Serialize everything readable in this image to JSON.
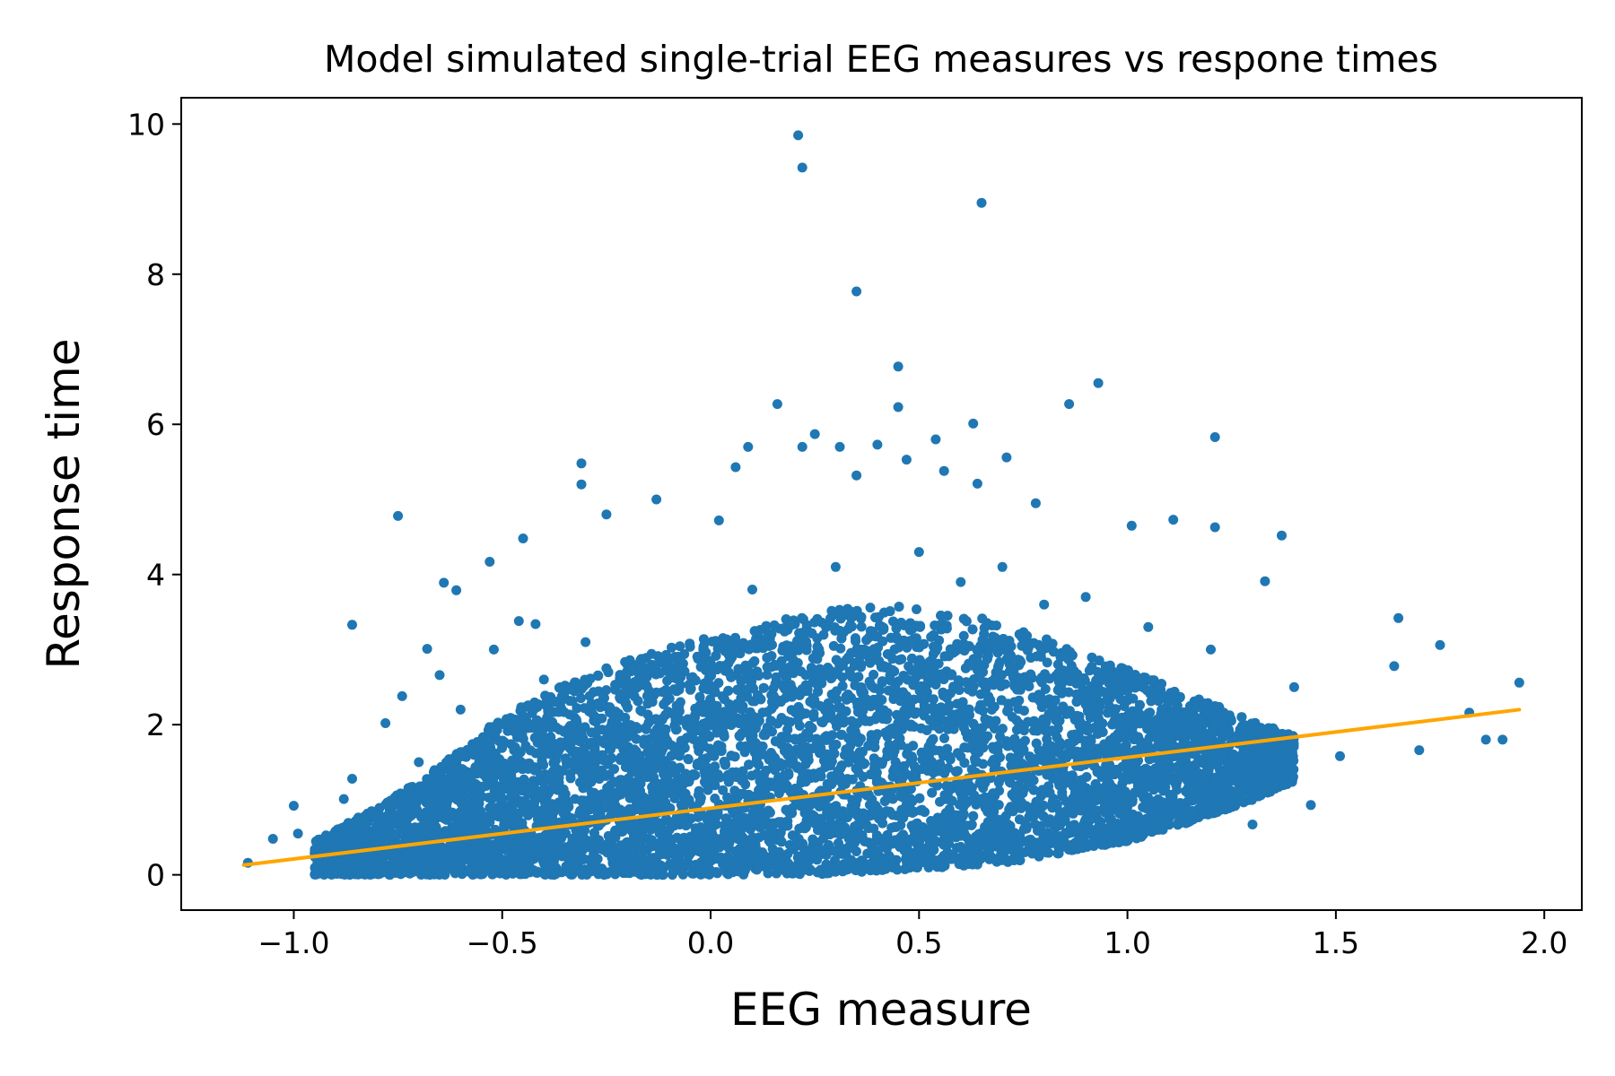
{
  "chart_data": {
    "type": "scatter",
    "title": "Model simulated single-trial EEG measures vs respone times",
    "xlabel": "EEG measure",
    "ylabel": "Response time",
    "xlim": [
      -1.27,
      2.09
    ],
    "ylim": [
      -0.47,
      10.35
    ],
    "xticks": [
      -1.0,
      -0.5,
      0.0,
      0.5,
      1.0,
      1.5,
      2.0
    ],
    "xtick_labels": [
      "−1.0",
      "−0.5",
      "0.0",
      "0.5",
      "1.0",
      "1.5",
      "2.0"
    ],
    "yticks": [
      0,
      2,
      4,
      6,
      8,
      10
    ],
    "ytick_labels": [
      "0",
      "2",
      "4",
      "6",
      "8",
      "10"
    ],
    "grid": false,
    "legend": "none",
    "colors": {
      "points": "#1f77b4",
      "fit_line": "#ffa500"
    },
    "series": [
      {
        "kind": "points",
        "points": [
          [
            0.21,
            9.85
          ],
          [
            0.22,
            9.42
          ],
          [
            0.65,
            8.95
          ],
          [
            0.35,
            7.77
          ],
          [
            0.45,
            6.77
          ],
          [
            0.93,
            6.55
          ],
          [
            0.86,
            6.27
          ],
          [
            0.16,
            6.27
          ],
          [
            0.45,
            6.23
          ],
          [
            0.63,
            6.01
          ],
          [
            0.25,
            5.87
          ],
          [
            1.21,
            5.83
          ],
          [
            0.09,
            5.7
          ],
          [
            0.22,
            5.7
          ],
          [
            0.54,
            5.8
          ],
          [
            0.31,
            5.7
          ],
          [
            0.4,
            5.73
          ],
          [
            -0.31,
            5.48
          ],
          [
            0.71,
            5.56
          ],
          [
            0.47,
            5.53
          ],
          [
            0.35,
            5.32
          ],
          [
            -0.31,
            5.2
          ],
          [
            0.06,
            5.43
          ],
          [
            0.56,
            5.38
          ],
          [
            0.64,
            5.21
          ],
          [
            -0.13,
            5.0
          ],
          [
            -0.75,
            4.78
          ],
          [
            -0.25,
            4.8
          ],
          [
            0.02,
            4.72
          ],
          [
            0.78,
            4.95
          ],
          [
            1.01,
            4.65
          ],
          [
            1.11,
            4.73
          ],
          [
            1.21,
            4.63
          ],
          [
            1.37,
            4.52
          ],
          [
            -0.45,
            4.48
          ],
          [
            -0.53,
            4.17
          ],
          [
            -0.64,
            3.89
          ],
          [
            -0.61,
            3.79
          ],
          [
            1.33,
            3.91
          ],
          [
            -0.86,
            3.33
          ],
          [
            -0.46,
            3.38
          ],
          [
            -0.42,
            3.34
          ],
          [
            -0.68,
            3.01
          ],
          [
            -0.65,
            2.66
          ],
          [
            1.65,
            3.42
          ],
          [
            1.75,
            3.06
          ],
          [
            1.94,
            2.56
          ],
          [
            1.64,
            2.78
          ],
          [
            -0.74,
            2.38
          ],
          [
            -0.78,
            2.02
          ],
          [
            -0.86,
            1.28
          ],
          [
            -0.88,
            1.01
          ],
          [
            -1.0,
            0.92
          ],
          [
            -1.05,
            0.48
          ],
          [
            -0.99,
            0.55
          ],
          [
            -1.11,
            0.16
          ],
          [
            -0.92,
            0.04
          ],
          [
            1.82,
            2.16
          ],
          [
            1.9,
            1.8
          ],
          [
            1.86,
            1.8
          ],
          [
            1.7,
            1.66
          ],
          [
            1.51,
            1.58
          ],
          [
            1.44,
            0.93
          ],
          [
            1.3,
            0.67
          ],
          [
            -0.52,
            3.0
          ],
          [
            -0.3,
            3.1
          ],
          [
            0.1,
            3.8
          ],
          [
            0.6,
            3.9
          ],
          [
            0.8,
            3.6
          ],
          [
            1.05,
            3.3
          ],
          [
            -0.2,
            2.8
          ],
          [
            0.3,
            4.1
          ],
          [
            0.5,
            4.3
          ],
          [
            0.7,
            4.1
          ],
          [
            0.9,
            3.7
          ],
          [
            1.2,
            3.0
          ],
          [
            1.4,
            2.5
          ],
          [
            -0.7,
            1.5
          ],
          [
            -0.6,
            2.2
          ],
          [
            -0.4,
            2.6
          ]
        ]
      },
      {
        "kind": "points",
        "name": "",
        "density_envelope": [
          [
            -0.95,
            0.0,
            0.45
          ],
          [
            -0.8,
            0.0,
            0.9
          ],
          [
            -0.65,
            0.0,
            1.45
          ],
          [
            -0.5,
            0.0,
            2.1
          ],
          [
            -0.35,
            0.0,
            2.55
          ],
          [
            -0.2,
            0.0,
            2.85
          ],
          [
            -0.05,
            0.0,
            3.1
          ],
          [
            0.1,
            0.0,
            3.3
          ],
          [
            0.25,
            0.0,
            3.5
          ],
          [
            0.4,
            0.05,
            3.6
          ],
          [
            0.55,
            0.1,
            3.55
          ],
          [
            0.7,
            0.15,
            3.35
          ],
          [
            0.85,
            0.3,
            3.05
          ],
          [
            1.0,
            0.45,
            2.75
          ],
          [
            1.15,
            0.7,
            2.4
          ],
          [
            1.3,
            1.0,
            2.05
          ],
          [
            1.4,
            1.25,
            1.85
          ]
        ]
      },
      {
        "kind": "line",
        "x": [
          -1.12,
          1.94
        ],
        "y": [
          0.13,
          2.2
        ]
      }
    ]
  }
}
